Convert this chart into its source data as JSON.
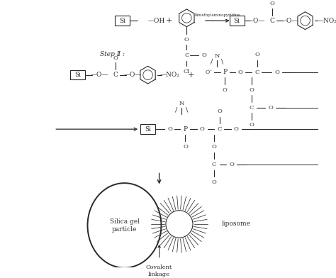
{
  "bg_color": "#ffffff",
  "fig_width": 4.74,
  "fig_height": 3.92,
  "dpi": 100,
  "text_color": "#2a2a2a",
  "line_color": "#2a2a2a",
  "step2_label": "Step Ⅱ :",
  "arrow_label": "Dimethylaminopyridine",
  "silica_label": "Silica gel\nparticle",
  "liposome_label": "liposome",
  "covalent_label": "Covalent\nlinkage"
}
